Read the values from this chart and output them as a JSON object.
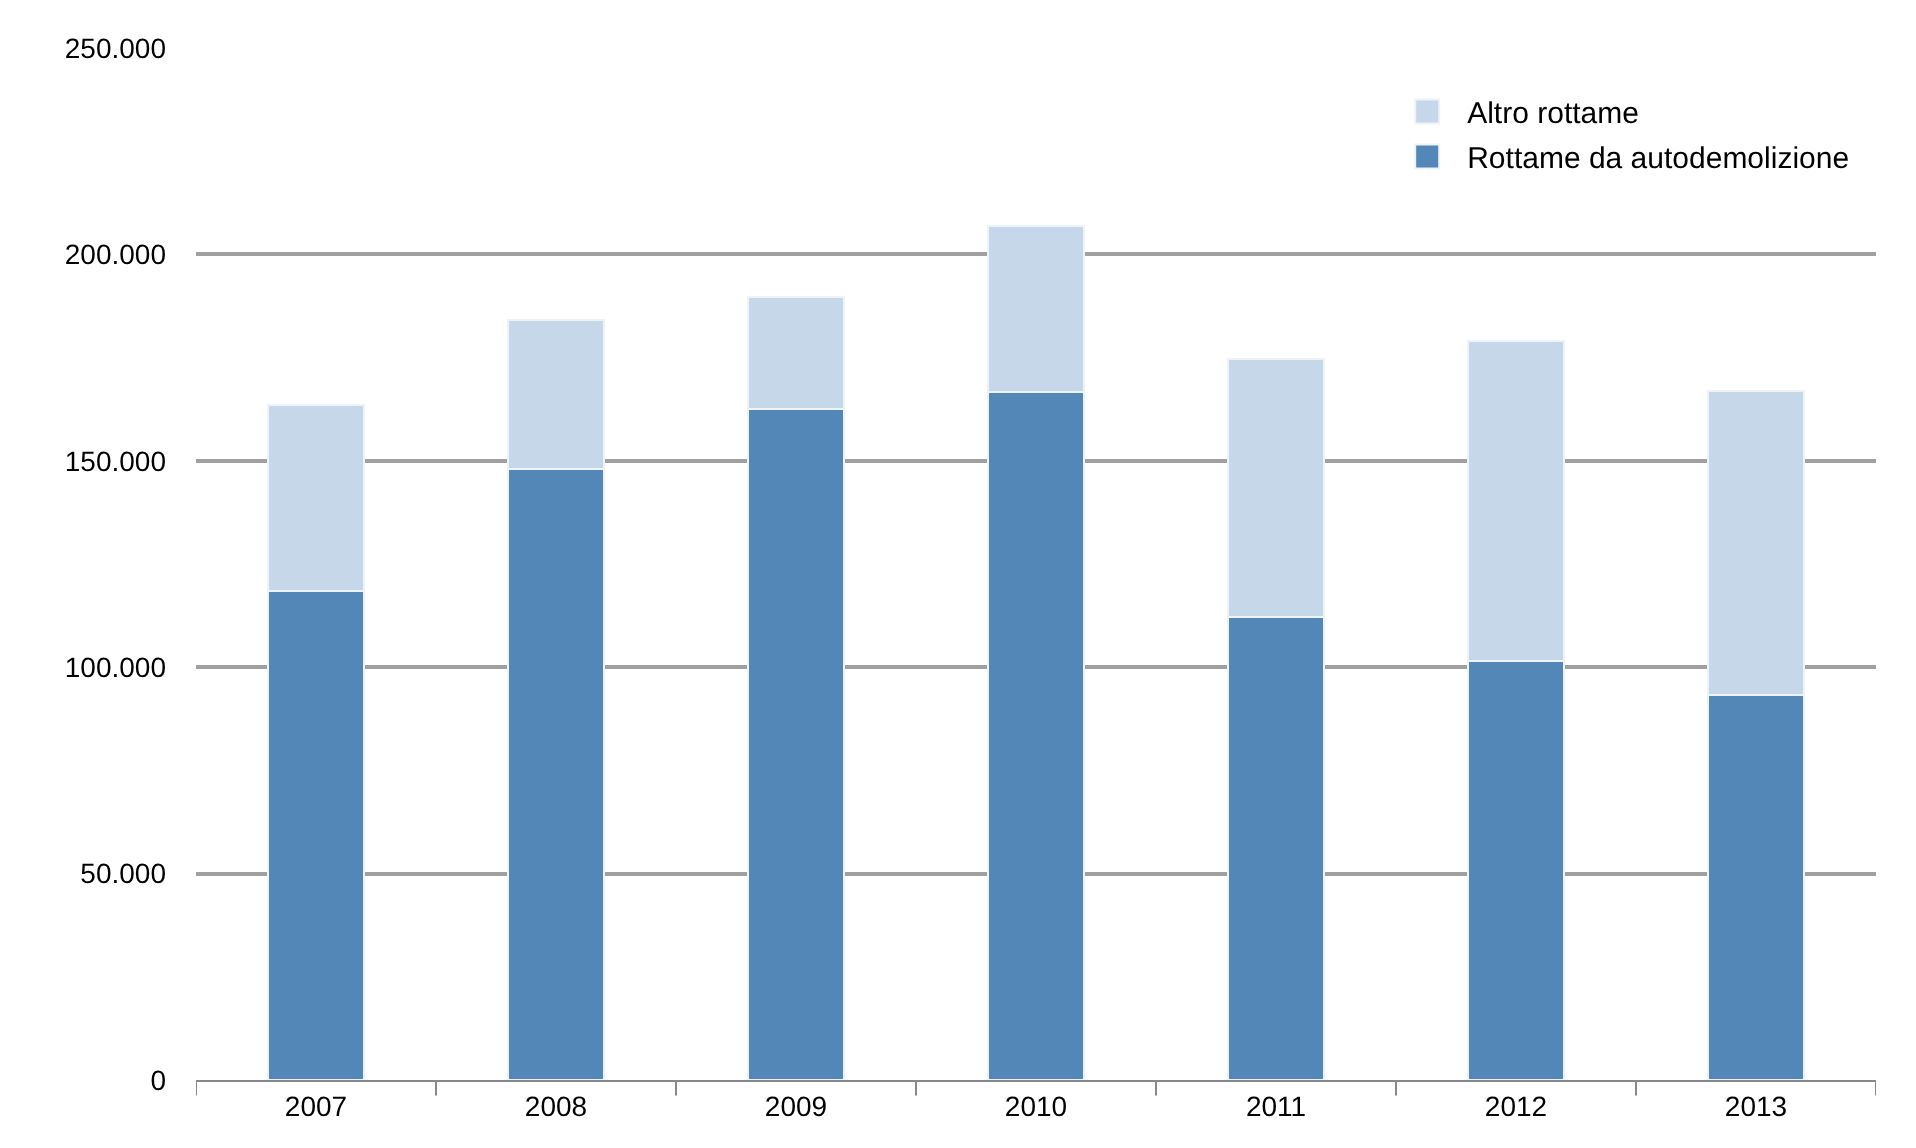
{
  "chart_data": {
    "type": "bar",
    "stacked": true,
    "categories": [
      "2007",
      "2008",
      "2009",
      "2010",
      "2011",
      "2012",
      "2013"
    ],
    "series": [
      {
        "name": "Rottame da autodemolizione",
        "color": "#5287b7",
        "values": [
          118400,
          148000,
          162500,
          166700,
          112100,
          101500,
          93200
        ]
      },
      {
        "name": "Altro rottame",
        "color": "#c5d7e8",
        "values": [
          45000,
          36000,
          27300,
          40100,
          62500,
          77500,
          73600
        ]
      }
    ],
    "ylim": [
      0,
      250000
    ],
    "yticks": [
      0,
      {
        "value": 50000,
        "label": "50.000"
      },
      {
        "value": 100000,
        "label": "100.000"
      },
      {
        "value": 150000,
        "label": "150.000"
      },
      {
        "value": 200000,
        "label": "200.000"
      },
      {
        "value": 250000,
        "label": "250.000"
      }
    ],
    "grid": "y",
    "legend": "top right"
  }
}
